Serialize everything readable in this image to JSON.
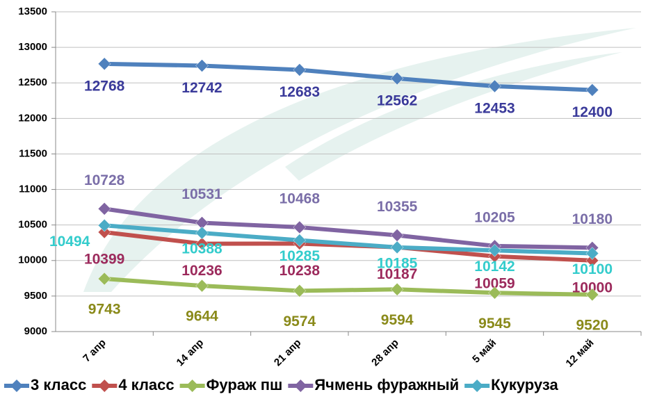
{
  "chart_data": {
    "type": "line",
    "categories": [
      "7 апр",
      "14 апр",
      "21 апр",
      "28 апр",
      "5 май",
      "12 май"
    ],
    "series": [
      {
        "name": "3 класс",
        "color": "#4f81bd",
        "label_color": "#3a3a9a",
        "values": [
          12768,
          12742,
          12683,
          12562,
          12453,
          12400
        ]
      },
      {
        "name": "4 класс",
        "color": "#c0504d",
        "label_color": "#9c2a5c",
        "values": [
          10399,
          10236,
          10238,
          10187,
          10059,
          10000
        ]
      },
      {
        "name": "Фураж пш",
        "color": "#9bbb59",
        "label_color": "#8a8a1a",
        "values": [
          9743,
          9644,
          9574,
          9594,
          9545,
          9520
        ]
      },
      {
        "name": "Ячмень фуражный",
        "color": "#8064a2",
        "label_color": "#7a6ea8",
        "values": [
          10728,
          10531,
          10468,
          10355,
          10205,
          10180
        ]
      },
      {
        "name": "Кукуруза",
        "color": "#4bacc6",
        "label_color": "#33cccc",
        "values": [
          10494,
          10388,
          10285,
          10185,
          10142,
          10100
        ]
      }
    ],
    "ylim": [
      9000,
      13500
    ],
    "yticks": [
      9000,
      9500,
      10000,
      10500,
      11000,
      11500,
      12000,
      12500,
      13000,
      13500
    ],
    "grid": true,
    "legend": "bottom"
  }
}
